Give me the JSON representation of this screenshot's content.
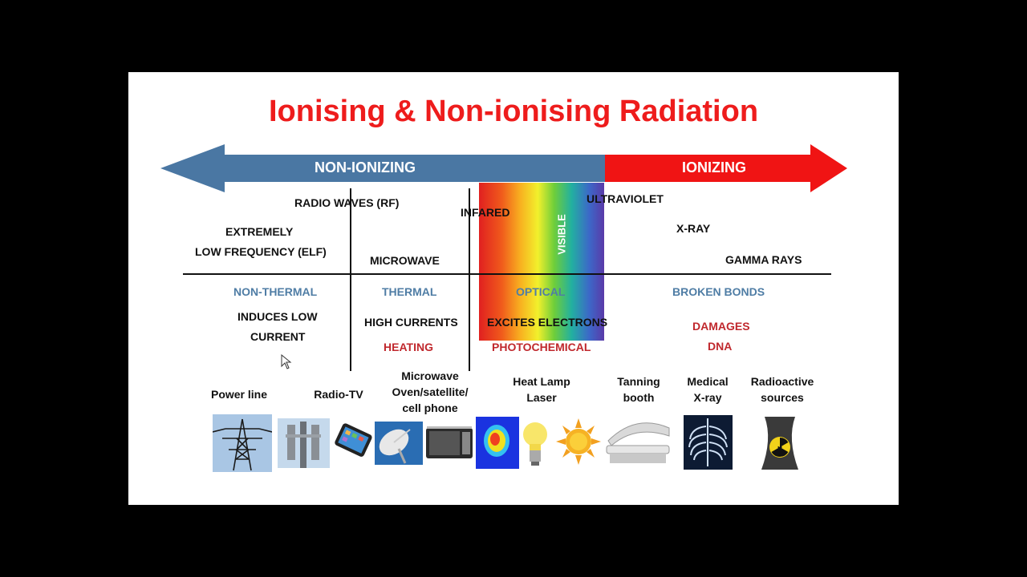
{
  "title": "Ionising & Non-ionising Radiation",
  "arrow": {
    "left_label": "NON-IONIZING",
    "right_label": "IONIZING",
    "left_color": "#4a77a3",
    "right_color": "#f01414"
  },
  "spectrum": {
    "radio_waves": "RADIO WAVES (RF)",
    "infrared": "INFARED",
    "visible": "VISIBLE",
    "ultraviolet": "ULTRAVIOLET",
    "elf_line1": "EXTREMELY",
    "elf_line2": "LOW FREQUENCY (ELF)",
    "microwave": "MICROWAVE",
    "xray": "X-RAY",
    "gamma": "GAMMA RAYS"
  },
  "effects": {
    "non_thermal": "NON-THERMAL",
    "thermal": "THERMAL",
    "optical": "OPTICAL",
    "broken_bonds": "BROKEN BONDS",
    "induces_line1": "INDUCES LOW",
    "induces_line2": "CURRENT",
    "high_currents": "HIGH CURRENTS",
    "heating": "HEATING",
    "excites": "EXCITES ELECTRONS",
    "photochemical": "PHOTOCHEMICAL",
    "damages_line1": "DAMAGES",
    "damages_line2": "DNA"
  },
  "sources": {
    "power_line": "Power line",
    "radio_tv": "Radio-TV",
    "microwave_line1": "Microwave",
    "microwave_line2": "Oven/satellite/",
    "microwave_line3": "cell phone",
    "heat_line1": "Heat Lamp",
    "heat_line2": "Laser",
    "tanning_line1": "Tanning",
    "tanning_line2": "booth",
    "medical_line1": "Medical",
    "medical_line2": "X-ray",
    "radioactive_line1": "Radioactive",
    "radioactive_line2": "sources"
  },
  "icons": [
    "power-line-tower-icon",
    "radio-tower-icon",
    "tablet-icon",
    "satellite-dish-icon",
    "microwave-oven-icon",
    "thermal-image-icon",
    "light-bulb-icon",
    "sun-icon",
    "tanning-bed-icon",
    "chest-xray-icon",
    "radiation-hazard-icon"
  ]
}
